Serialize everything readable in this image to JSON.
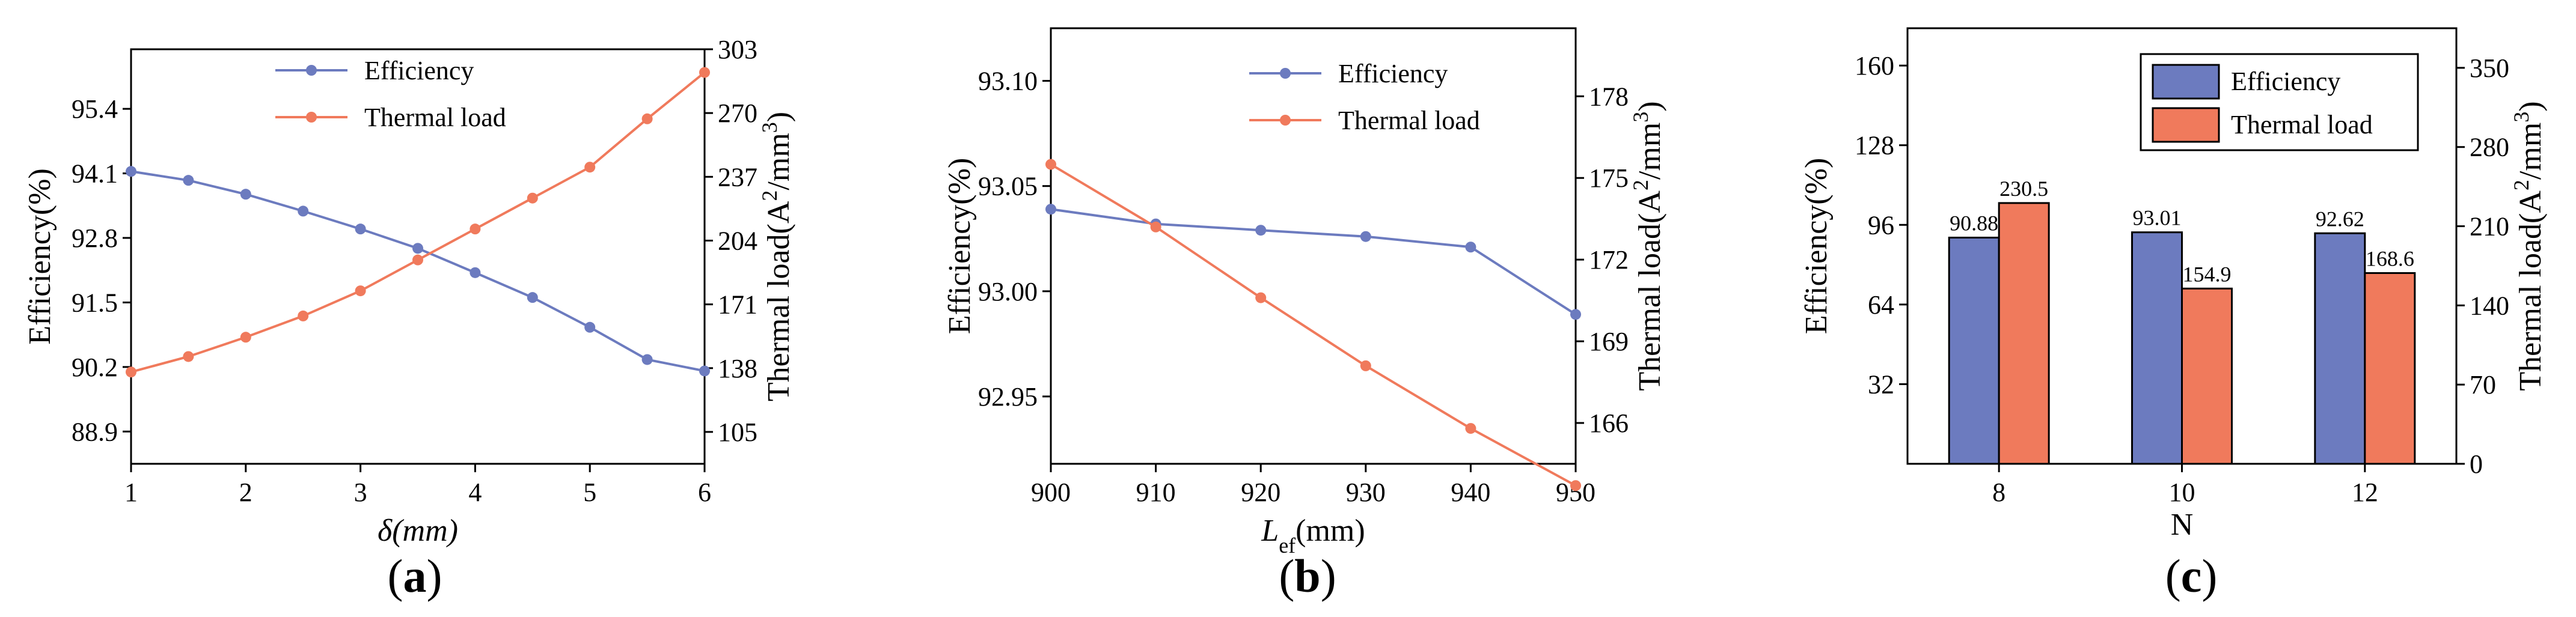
{
  "colors": {
    "efficiency": "#6c7bbf",
    "thermal": "#f07a5c",
    "axis": "#000000"
  },
  "panels": [
    {
      "caption_open": "(",
      "caption_letter": "a",
      "caption_close": ")"
    },
    {
      "caption_open": "(",
      "caption_letter": "b",
      "caption_close": ")"
    },
    {
      "caption_open": "(",
      "caption_letter": "c",
      "caption_close": ")"
    }
  ],
  "chart_data": [
    {
      "type": "line",
      "panel": "a",
      "xlabel": "δ(mm)",
      "ylabel": "Efficiency(%)",
      "y2label": "Thermal load(A²/mm³)",
      "xlim": [
        1,
        6
      ],
      "ylim": [
        88.25,
        96.6
      ],
      "y2lim": [
        88.5,
        303
      ],
      "xticks": [
        1,
        2,
        3,
        4,
        5,
        6
      ],
      "yticks": [
        "88.9",
        "90.2",
        "91.5",
        "92.8",
        "94.1",
        "95.4"
      ],
      "y2ticks": [
        "105",
        "138",
        "171",
        "204",
        "237",
        "270",
        "303"
      ],
      "legend_position": "top-center",
      "x": [
        1,
        1.5,
        2,
        2.5,
        3,
        3.5,
        4,
        4.5,
        5,
        5.5,
        6
      ],
      "series": [
        {
          "name": "Efficiency",
          "axis": "left",
          "values": [
            94.14,
            93.96,
            93.68,
            93.34,
            92.98,
            92.59,
            92.1,
            91.6,
            91.0,
            90.35,
            90.12
          ]
        },
        {
          "name": "Thermal load",
          "axis": "right",
          "values": [
            136,
            144,
            154,
            165,
            178,
            194,
            210,
            226,
            242,
            267,
            291
          ]
        }
      ]
    },
    {
      "type": "line",
      "panel": "b",
      "xlabel": "L",
      "xlabel_sub": "ef",
      "xlabel_unit": "(mm)",
      "ylabel": "Efficiency(%)",
      "y2label": "Thermal load(A²/mm³)",
      "xlim": [
        900,
        950
      ],
      "ylim": [
        92.918,
        93.125
      ],
      "y2lim": [
        164.5,
        180.5
      ],
      "xticks": [
        900,
        910,
        920,
        930,
        940,
        950
      ],
      "yticks": [
        "92.95",
        "93.00",
        "93.05",
        "93.10"
      ],
      "y2ticks": [
        "166",
        "169",
        "172",
        "175",
        "178"
      ],
      "legend_position": "top-right",
      "x": [
        900,
        910,
        920,
        930,
        940,
        950
      ],
      "series": [
        {
          "name": "Efficiency",
          "axis": "left",
          "values": [
            93.039,
            93.032,
            93.029,
            93.026,
            93.021,
            92.989
          ]
        },
        {
          "name": "Thermal load",
          "axis": "right",
          "values": [
            175.5,
            173.2,
            170.6,
            168.1,
            165.8,
            163.7
          ]
        }
      ]
    },
    {
      "type": "bar",
      "panel": "c",
      "xlabel": "N",
      "ylabel": "Efficiency(%)",
      "y2label": "Thermal load(A²/mm³)",
      "categories": [
        "8",
        "10",
        "12"
      ],
      "ylim": [
        0,
        175
      ],
      "y2lim": [
        0,
        385
      ],
      "yticks": [
        "32",
        "64",
        "96",
        "128",
        "160"
      ],
      "y2ticks": [
        "0",
        "70",
        "140",
        "210",
        "280",
        "350"
      ],
      "legend_position": "top-right",
      "series": [
        {
          "name": "Efficiency",
          "axis": "left",
          "values": [
            90.88,
            93.01,
            92.62
          ],
          "labels": [
            "90.88",
            "93.01",
            "92.62"
          ]
        },
        {
          "name": "Thermal load",
          "axis": "right",
          "values": [
            230.5,
            154.9,
            168.6
          ],
          "labels": [
            "230.5",
            "154.9",
            "168.6"
          ]
        }
      ]
    }
  ]
}
